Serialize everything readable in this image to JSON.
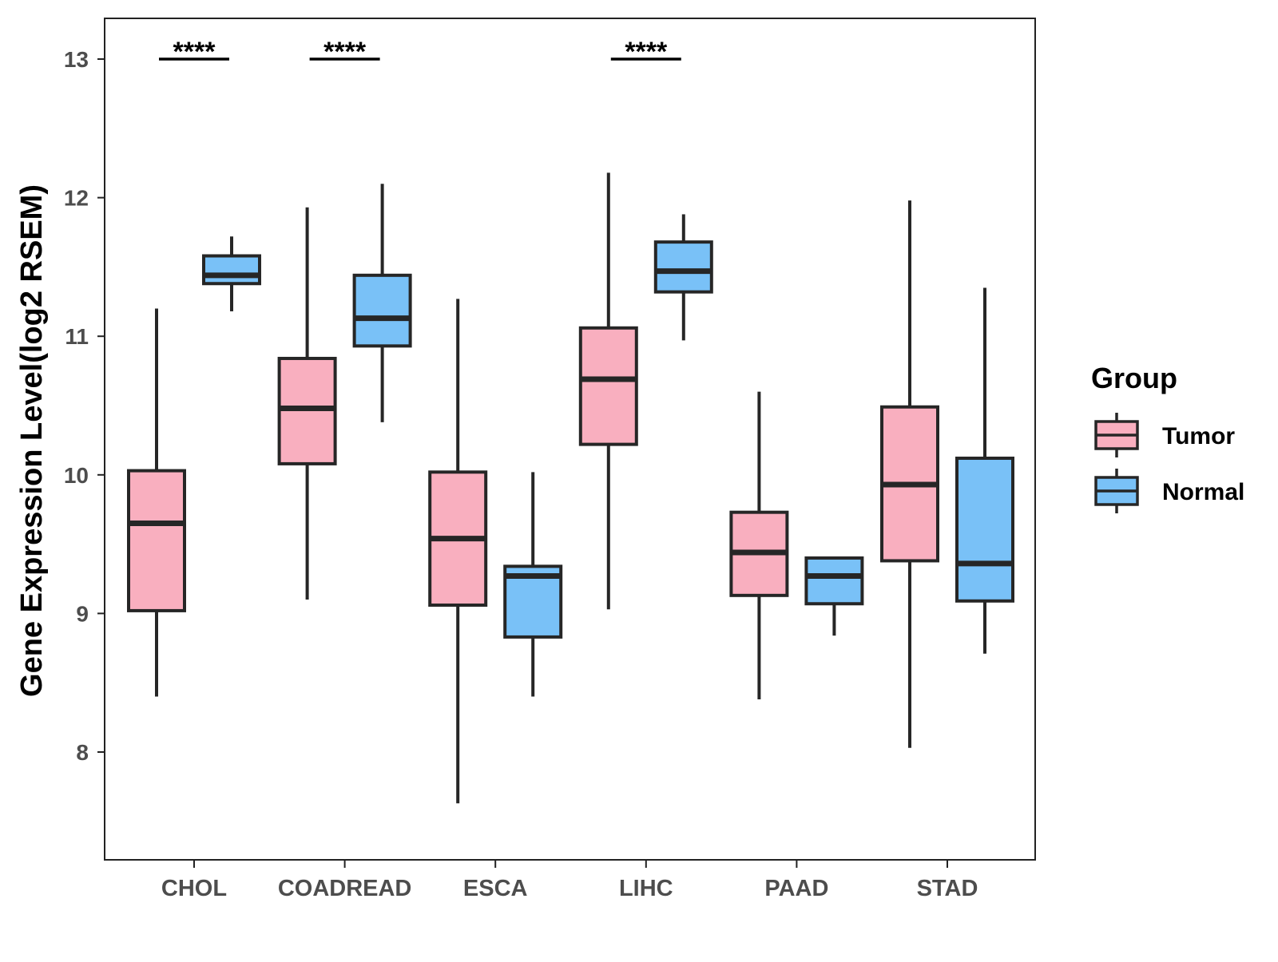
{
  "chart_data": {
    "type": "boxplot",
    "title": "",
    "xlabel": "",
    "ylabel": "Gene Expression Level(log2 RSEM)",
    "ylim": [
      7.4,
      13.3
    ],
    "yticks": [
      8,
      9,
      10,
      11,
      12,
      13
    ],
    "grid": false,
    "legend_position": "right",
    "legend": {
      "title": "Group",
      "entries": [
        {
          "name": "Tumor",
          "color": "#F9AFBF"
        },
        {
          "name": "Normal",
          "color": "#79C1F7"
        }
      ]
    },
    "categories": [
      "CHOL",
      "COADREAD",
      "ESCA",
      "LIHC",
      "PAAD",
      "STAD"
    ],
    "series": [
      {
        "name": "Tumor",
        "color": "#F9AFBF",
        "boxes": [
          {
            "category": "CHOL",
            "whisker_low": 8.4,
            "q1": 9.02,
            "median": 9.65,
            "q3": 10.03,
            "whisker_high": 11.2
          },
          {
            "category": "COADREAD",
            "whisker_low": 9.1,
            "q1": 10.08,
            "median": 10.48,
            "q3": 10.84,
            "whisker_high": 11.93
          },
          {
            "category": "ESCA",
            "whisker_low": 7.63,
            "q1": 9.06,
            "median": 9.54,
            "q3": 10.02,
            "whisker_high": 11.27
          },
          {
            "category": "LIHC",
            "whisker_low": 9.03,
            "q1": 10.22,
            "median": 10.69,
            "q3": 11.06,
            "whisker_high": 12.18
          },
          {
            "category": "PAAD",
            "whisker_low": 8.38,
            "q1": 9.13,
            "median": 9.44,
            "q3": 9.73,
            "whisker_high": 10.6
          },
          {
            "category": "STAD",
            "whisker_low": 8.03,
            "q1": 9.38,
            "median": 9.93,
            "q3": 10.49,
            "whisker_high": 11.98
          }
        ]
      },
      {
        "name": "Normal",
        "color": "#79C1F7",
        "boxes": [
          {
            "category": "CHOL",
            "whisker_low": 11.18,
            "q1": 11.38,
            "median": 11.44,
            "q3": 11.58,
            "whisker_high": 11.72
          },
          {
            "category": "COADREAD",
            "whisker_low": 10.38,
            "q1": 10.93,
            "median": 11.13,
            "q3": 11.44,
            "whisker_high": 12.1
          },
          {
            "category": "ESCA",
            "whisker_low": 8.4,
            "q1": 8.83,
            "median": 9.27,
            "q3": 9.34,
            "whisker_high": 10.02
          },
          {
            "category": "LIHC",
            "whisker_low": 10.97,
            "q1": 11.32,
            "median": 11.47,
            "q3": 11.68,
            "whisker_high": 11.88
          },
          {
            "category": "PAAD",
            "whisker_low": 8.84,
            "q1": 9.07,
            "median": 9.27,
            "q3": 9.4,
            "whisker_high": 9.4
          },
          {
            "category": "STAD",
            "whisker_low": 8.71,
            "q1": 9.09,
            "median": 9.36,
            "q3": 10.12,
            "whisker_high": 11.35
          }
        ]
      }
    ],
    "annotations": [
      {
        "category": "CHOL",
        "text": "****",
        "y": 13
      },
      {
        "category": "COADREAD",
        "text": "****",
        "y": 13
      },
      {
        "category": "LIHC",
        "text": "****",
        "y": 13
      }
    ]
  }
}
